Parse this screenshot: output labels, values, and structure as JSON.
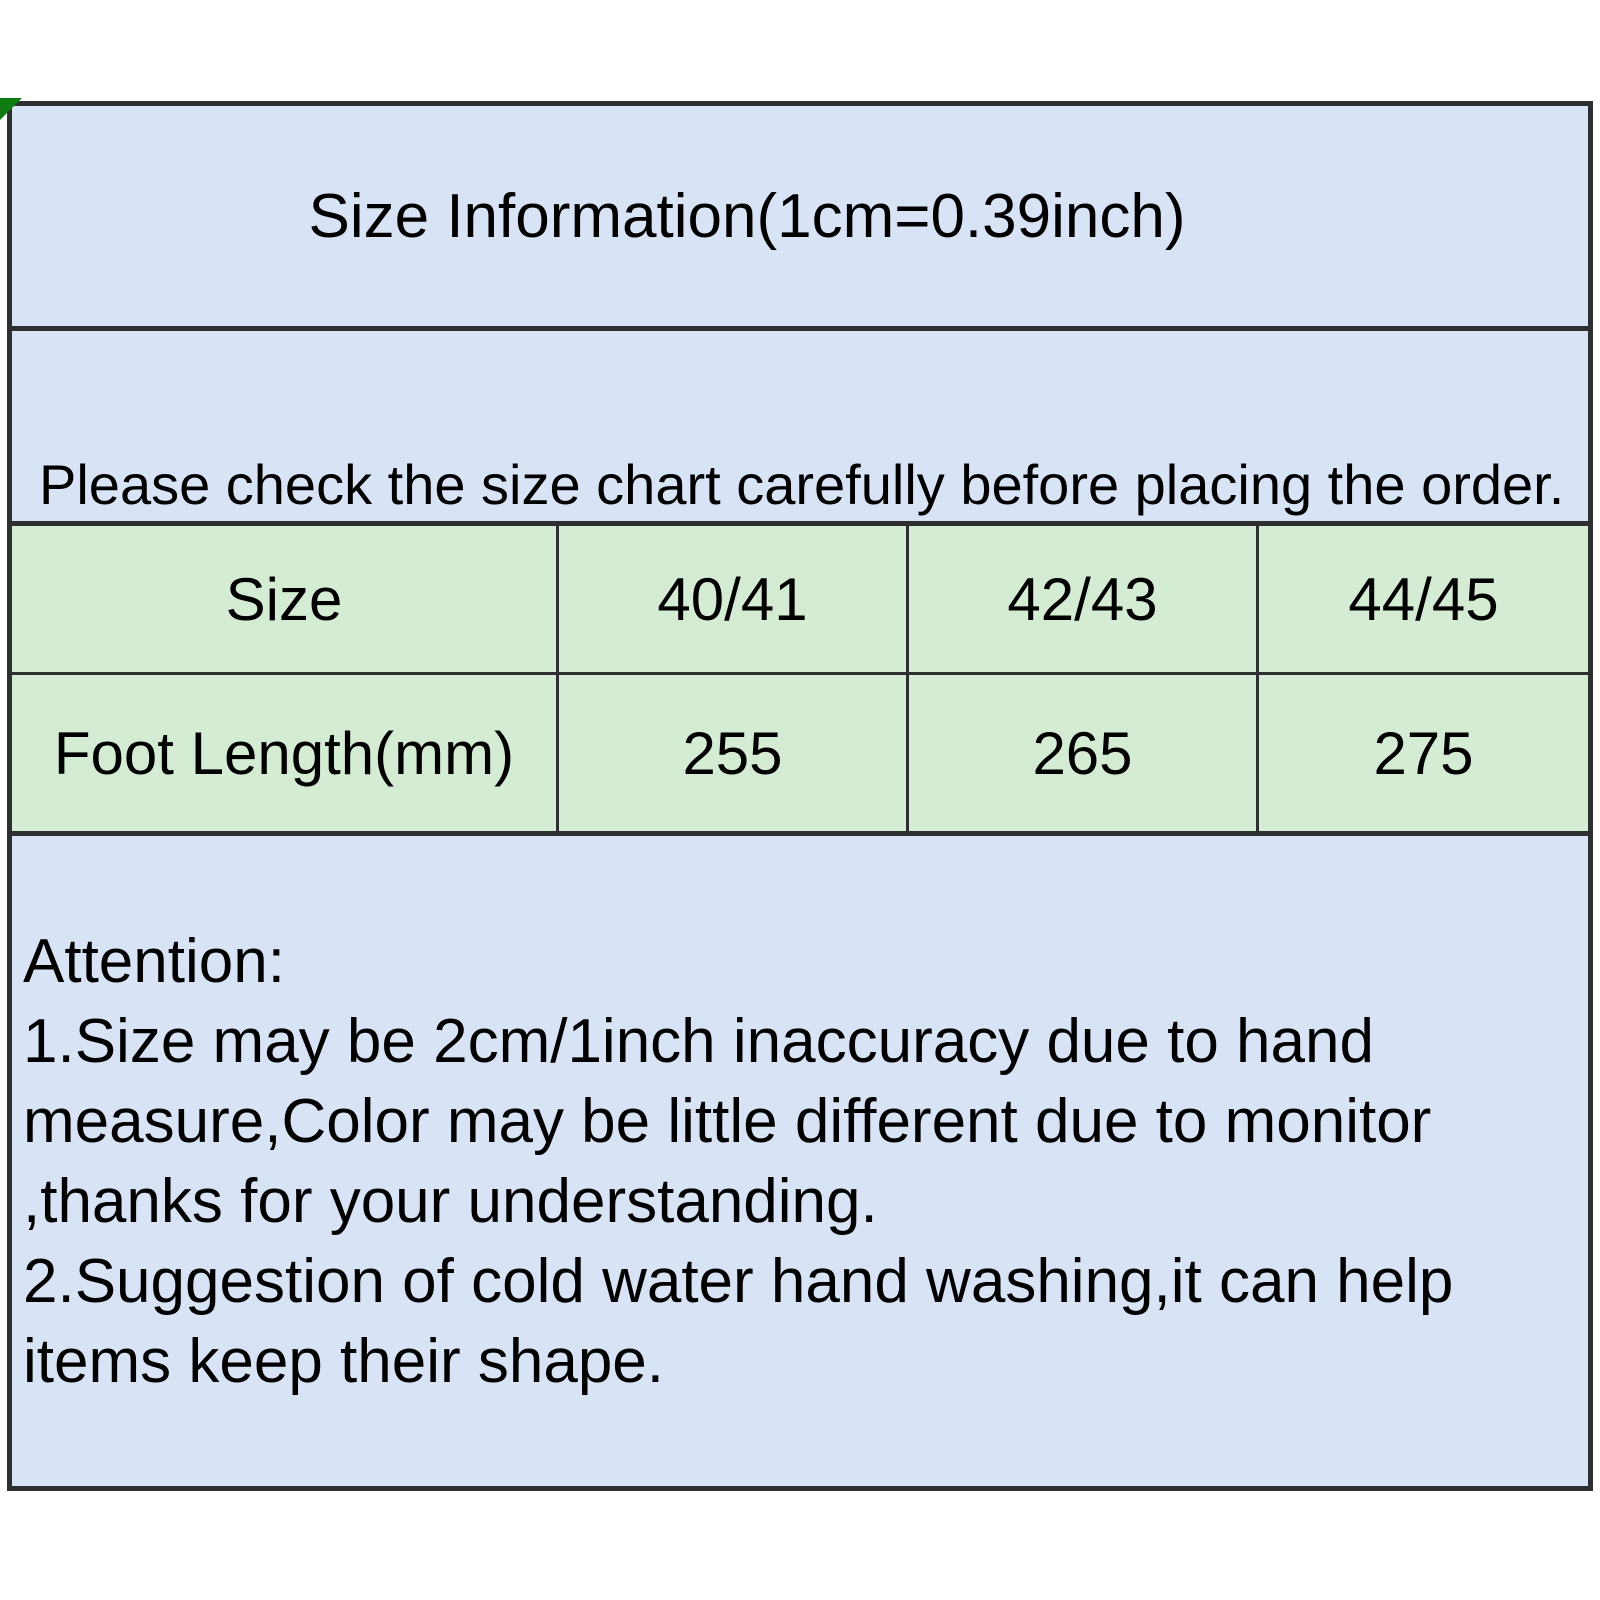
{
  "title": "Size Information(1cm=0.39inch)",
  "notice": "Please check the size chart carefully before placing the order.",
  "size_table": {
    "headers": [
      "Size",
      "40/41",
      "42/43",
      "44/45"
    ],
    "row_label": "Foot Length(mm)",
    "row_values": [
      "255",
      "265",
      "275"
    ]
  },
  "attention": {
    "heading": "Attention:",
    "items": [
      "1.Size may be 2cm/1inch inaccuracy due to hand\nmeasure,Color may be little different due to monitor\n,thanks for your understanding.",
      "2.Suggestion of cold water hand washing,it can help\nitems keep their shape."
    ]
  },
  "colors": {
    "section_blue": "#d9e3f6",
    "cell_green": "#d5ecd4",
    "border": "#2e2f30",
    "corner_green": "#0e7c12",
    "text": "#000000",
    "page_bg": "#ffffff"
  }
}
